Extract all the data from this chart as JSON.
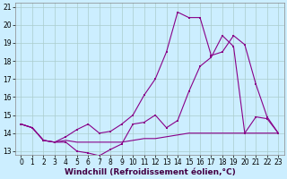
{
  "xlabel": "Windchill (Refroidissement éolien,°C)",
  "background_color": "#cceeff",
  "grid_color": "#aacccc",
  "line_color": "#880088",
  "xlim": [
    -0.5,
    23.5
  ],
  "ylim": [
    12.8,
    21.2
  ],
  "yticks": [
    13,
    14,
    15,
    16,
    17,
    18,
    19,
    20,
    21
  ],
  "xticks": [
    0,
    1,
    2,
    3,
    4,
    5,
    6,
    7,
    8,
    9,
    10,
    11,
    12,
    13,
    14,
    15,
    16,
    17,
    18,
    19,
    20,
    21,
    22,
    23
  ],
  "s1_x": [
    0,
    1,
    2,
    3,
    4,
    5,
    6,
    7,
    8,
    9,
    10,
    11,
    12,
    13,
    14,
    15,
    16,
    17,
    18,
    19,
    20,
    21,
    22,
    23
  ],
  "s1_y": [
    14.5,
    14.3,
    13.6,
    13.5,
    13.5,
    13.0,
    12.9,
    12.75,
    13.1,
    13.4,
    14.5,
    14.6,
    15.0,
    14.3,
    14.7,
    16.3,
    17.7,
    18.2,
    19.4,
    18.8,
    14.0,
    14.9,
    14.8,
    14.0
  ],
  "s2_x": [
    0,
    1,
    2,
    3,
    4,
    5,
    6,
    7,
    8,
    9,
    10,
    11,
    12,
    13,
    14,
    15,
    16,
    17,
    18,
    19,
    20,
    21,
    22,
    23
  ],
  "s2_y": [
    14.5,
    14.3,
    13.6,
    13.5,
    13.6,
    13.5,
    13.5,
    13.5,
    13.5,
    13.5,
    13.6,
    13.7,
    13.7,
    13.8,
    13.9,
    14.0,
    14.0,
    14.0,
    14.0,
    14.0,
    14.0,
    14.0,
    14.0,
    14.0
  ],
  "s3_x": [
    0,
    1,
    2,
    3,
    4,
    5,
    6,
    7,
    8,
    9,
    10,
    11,
    12,
    13,
    14,
    15,
    16,
    17,
    18,
    19,
    20,
    21,
    22,
    23
  ],
  "s3_y": [
    14.5,
    14.3,
    13.6,
    13.5,
    13.8,
    14.2,
    14.5,
    14.0,
    14.1,
    14.5,
    15.0,
    16.1,
    17.0,
    18.5,
    20.7,
    20.4,
    20.4,
    18.3,
    18.5,
    19.4,
    18.9,
    16.7,
    14.9,
    14.0
  ],
  "tick_fontsize": 5.5,
  "xlabel_fontsize": 6.5
}
